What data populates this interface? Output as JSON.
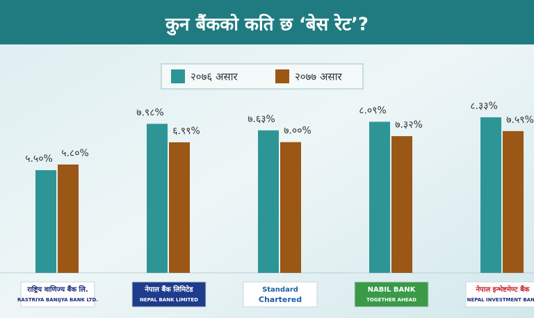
{
  "chart_data": {
    "type": "bar",
    "title": "कुन बैंकको कति छ ‘बेस रेट’?",
    "categories": [
      "राष्ट्रिय वाणिज्य बैंक लि.",
      "नेपाल बैंक लिमिटेड",
      "Standard",
      "NABIL BANK",
      "नेपाल इन्भेष्टमेण्ट बैंक"
    ],
    "category_subtexts": [
      "RASTRIYA BANIJYA BANK LTD.",
      "NEPAL BANK LIMITED",
      "Chartered",
      "TOGETHER AHEAD",
      "NEPAL INVESTMENT BANK"
    ],
    "series": [
      {
        "name": "२०७६ असार",
        "color": "#2e9597",
        "values": [
          5.5,
          7.98,
          7.63,
          8.09,
          8.33
        ],
        "value_labels": [
          "५.५०%",
          "७.९८%",
          "७.६३%",
          "८.०९%",
          "८.३३%"
        ]
      },
      {
        "name": "२०७७ असार",
        "color": "#9a5716",
        "values": [
          5.8,
          6.99,
          7.0,
          7.32,
          7.59
        ],
        "value_labels": [
          "५.८०%",
          "६.९९%",
          "७.००%",
          "७.३२%",
          "७.५९%"
        ]
      }
    ]
  }
}
